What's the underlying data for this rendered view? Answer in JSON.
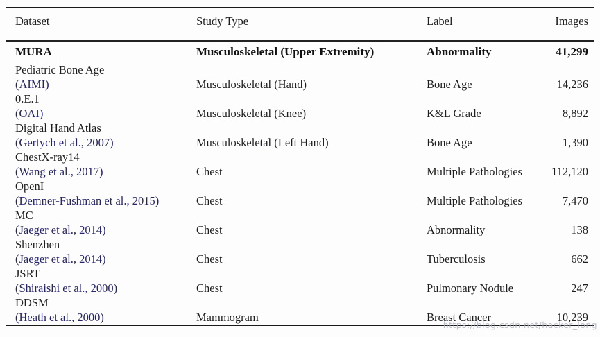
{
  "table": {
    "headers": {
      "dataset": "Dataset",
      "study_type": "Study Type",
      "label": "Label",
      "images": "Images"
    },
    "highlight_row": {
      "dataset": "MURA",
      "study_type": "Musculoskeletal (Upper Extremity)",
      "label": "Abnormality",
      "images": "41,299"
    },
    "rows": [
      {
        "name": "Pediatric Bone Age",
        "citation": "(AIMI)",
        "study_type": "Musculoskeletal (Hand)",
        "label": "Bone Age",
        "images": "14,236"
      },
      {
        "name": "0.E.1",
        "citation": "(OAI)",
        "study_type": "Musculoskeletal (Knee)",
        "label": "K&L Grade",
        "images": "8,892"
      },
      {
        "name": "Digital Hand Atlas",
        "citation": "(Gertych et al., 2007)",
        "study_type": "Musculoskeletal (Left Hand)",
        "label": "Bone Age",
        "images": "1,390"
      },
      {
        "name": "ChestX-ray14",
        "citation": "(Wang et al., 2017)",
        "study_type": "Chest",
        "label": "Multiple Pathologies",
        "images": "112,120"
      },
      {
        "name": "OpenI",
        "citation": "(Demner-Fushman et al., 2015)",
        "study_type": "Chest",
        "label": "Multiple Pathologies",
        "images": "7,470"
      },
      {
        "name": "MC",
        "citation": "(Jaeger et al., 2014)",
        "study_type": "Chest",
        "label": "Abnormality",
        "images": "138"
      },
      {
        "name": "Shenzhen",
        "citation": "(Jaeger et al., 2014)",
        "study_type": "Chest",
        "label": "Tuberculosis",
        "images": "662"
      },
      {
        "name": "JSRT",
        "citation": "(Shiraishi et al., 2000)",
        "study_type": "Chest",
        "label": "Pulmonary Nodule",
        "images": "247"
      },
      {
        "name": "DDSM",
        "citation": "(Heath et al., 2000)",
        "study_type": "Mammogram",
        "label": "Breast Cancer",
        "images": "10,239"
      }
    ]
  },
  "watermark": "https://blog.csdn.net/hacker_long",
  "colors": {
    "text": "#1e1e20",
    "citation_link": "#24246a",
    "rule": "#1a1a1a",
    "watermark": "#aeb3bd",
    "background": "#fdfdfd"
  }
}
